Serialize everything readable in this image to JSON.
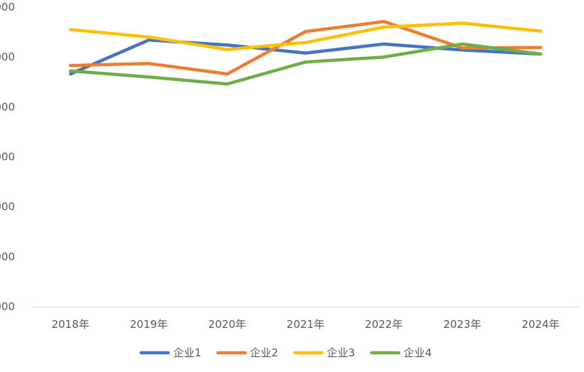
{
  "chart_data": {
    "type": "line",
    "categories": [
      "2018年",
      "2019年",
      "2020年",
      "2021年",
      "2022年",
      "2023年",
      "2024年"
    ],
    "y_tick_labels": [
      "000",
      "000",
      "000",
      "000",
      "000",
      "000",
      "000"
    ],
    "ylim": [
      0,
      6
    ],
    "grid": false,
    "legend_position": "bottom",
    "series": [
      {
        "name": "企业1",
        "color": "#4472C4",
        "values": [
          4.66,
          5.34,
          5.24,
          5.08,
          5.26,
          5.14,
          5.06
        ]
      },
      {
        "name": "企业2",
        "color": "#ED7D31",
        "values": [
          4.83,
          4.87,
          4.66,
          5.51,
          5.71,
          5.18,
          5.19
        ]
      },
      {
        "name": "企业3",
        "color": "#FFC000",
        "values": [
          5.55,
          5.4,
          5.15,
          5.29,
          5.6,
          5.68,
          5.52
        ]
      },
      {
        "name": "企业4",
        "color": "#70AD47",
        "values": [
          4.72,
          4.6,
          4.46,
          4.9,
          5.0,
          5.26,
          5.06
        ]
      }
    ]
  }
}
